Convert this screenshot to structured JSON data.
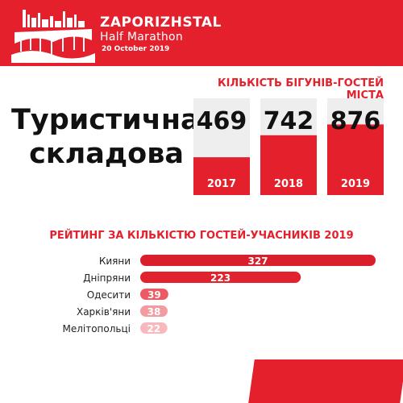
{
  "header": {
    "brand_name": "ZAPORIZHSTAL",
    "brand_sub": "Half Marathon",
    "date": "20 October 2019",
    "logo_icon": "city-bridge-icon",
    "background": "#e3202b"
  },
  "headline": {
    "line1": "Туристична",
    "line2": "складова"
  },
  "colors": {
    "accent": "#e3202b",
    "grey_box": "#eeeeee",
    "rank_colors": [
      "#d81f2b",
      "#e0232e",
      "#ec5a63",
      "#f29ca1",
      "#f7b9bd"
    ]
  },
  "chart_data": [
    {
      "type": "bar",
      "title": "КІЛЬКІСТЬ БІГУНІВ-ГОСТЕЙ МІСТА",
      "categories": [
        "2017",
        "2018",
        "2019"
      ],
      "values": [
        469,
        742,
        876
      ],
      "value_labels": [
        "469",
        "742",
        "876"
      ],
      "xlabel": "",
      "ylabel": "",
      "ylim": [
        0,
        1200
      ],
      "grid": false
    },
    {
      "type": "bar",
      "orientation": "horizontal",
      "title": "РЕЙТИНГ ЗА КІЛЬКІСТЮ ГОСТЕЙ-УЧАСНИКІВ 2019",
      "categories": [
        "Кияни",
        "Дніпряни",
        "Одесити",
        "Харків'яни",
        "Мелітопольці"
      ],
      "values": [
        327,
        223,
        39,
        38,
        22
      ],
      "value_labels": [
        "327",
        "223",
        "39",
        "38",
        "22"
      ],
      "xlabel": "",
      "ylabel": "",
      "xlim": [
        0,
        327
      ],
      "grid": false
    }
  ]
}
